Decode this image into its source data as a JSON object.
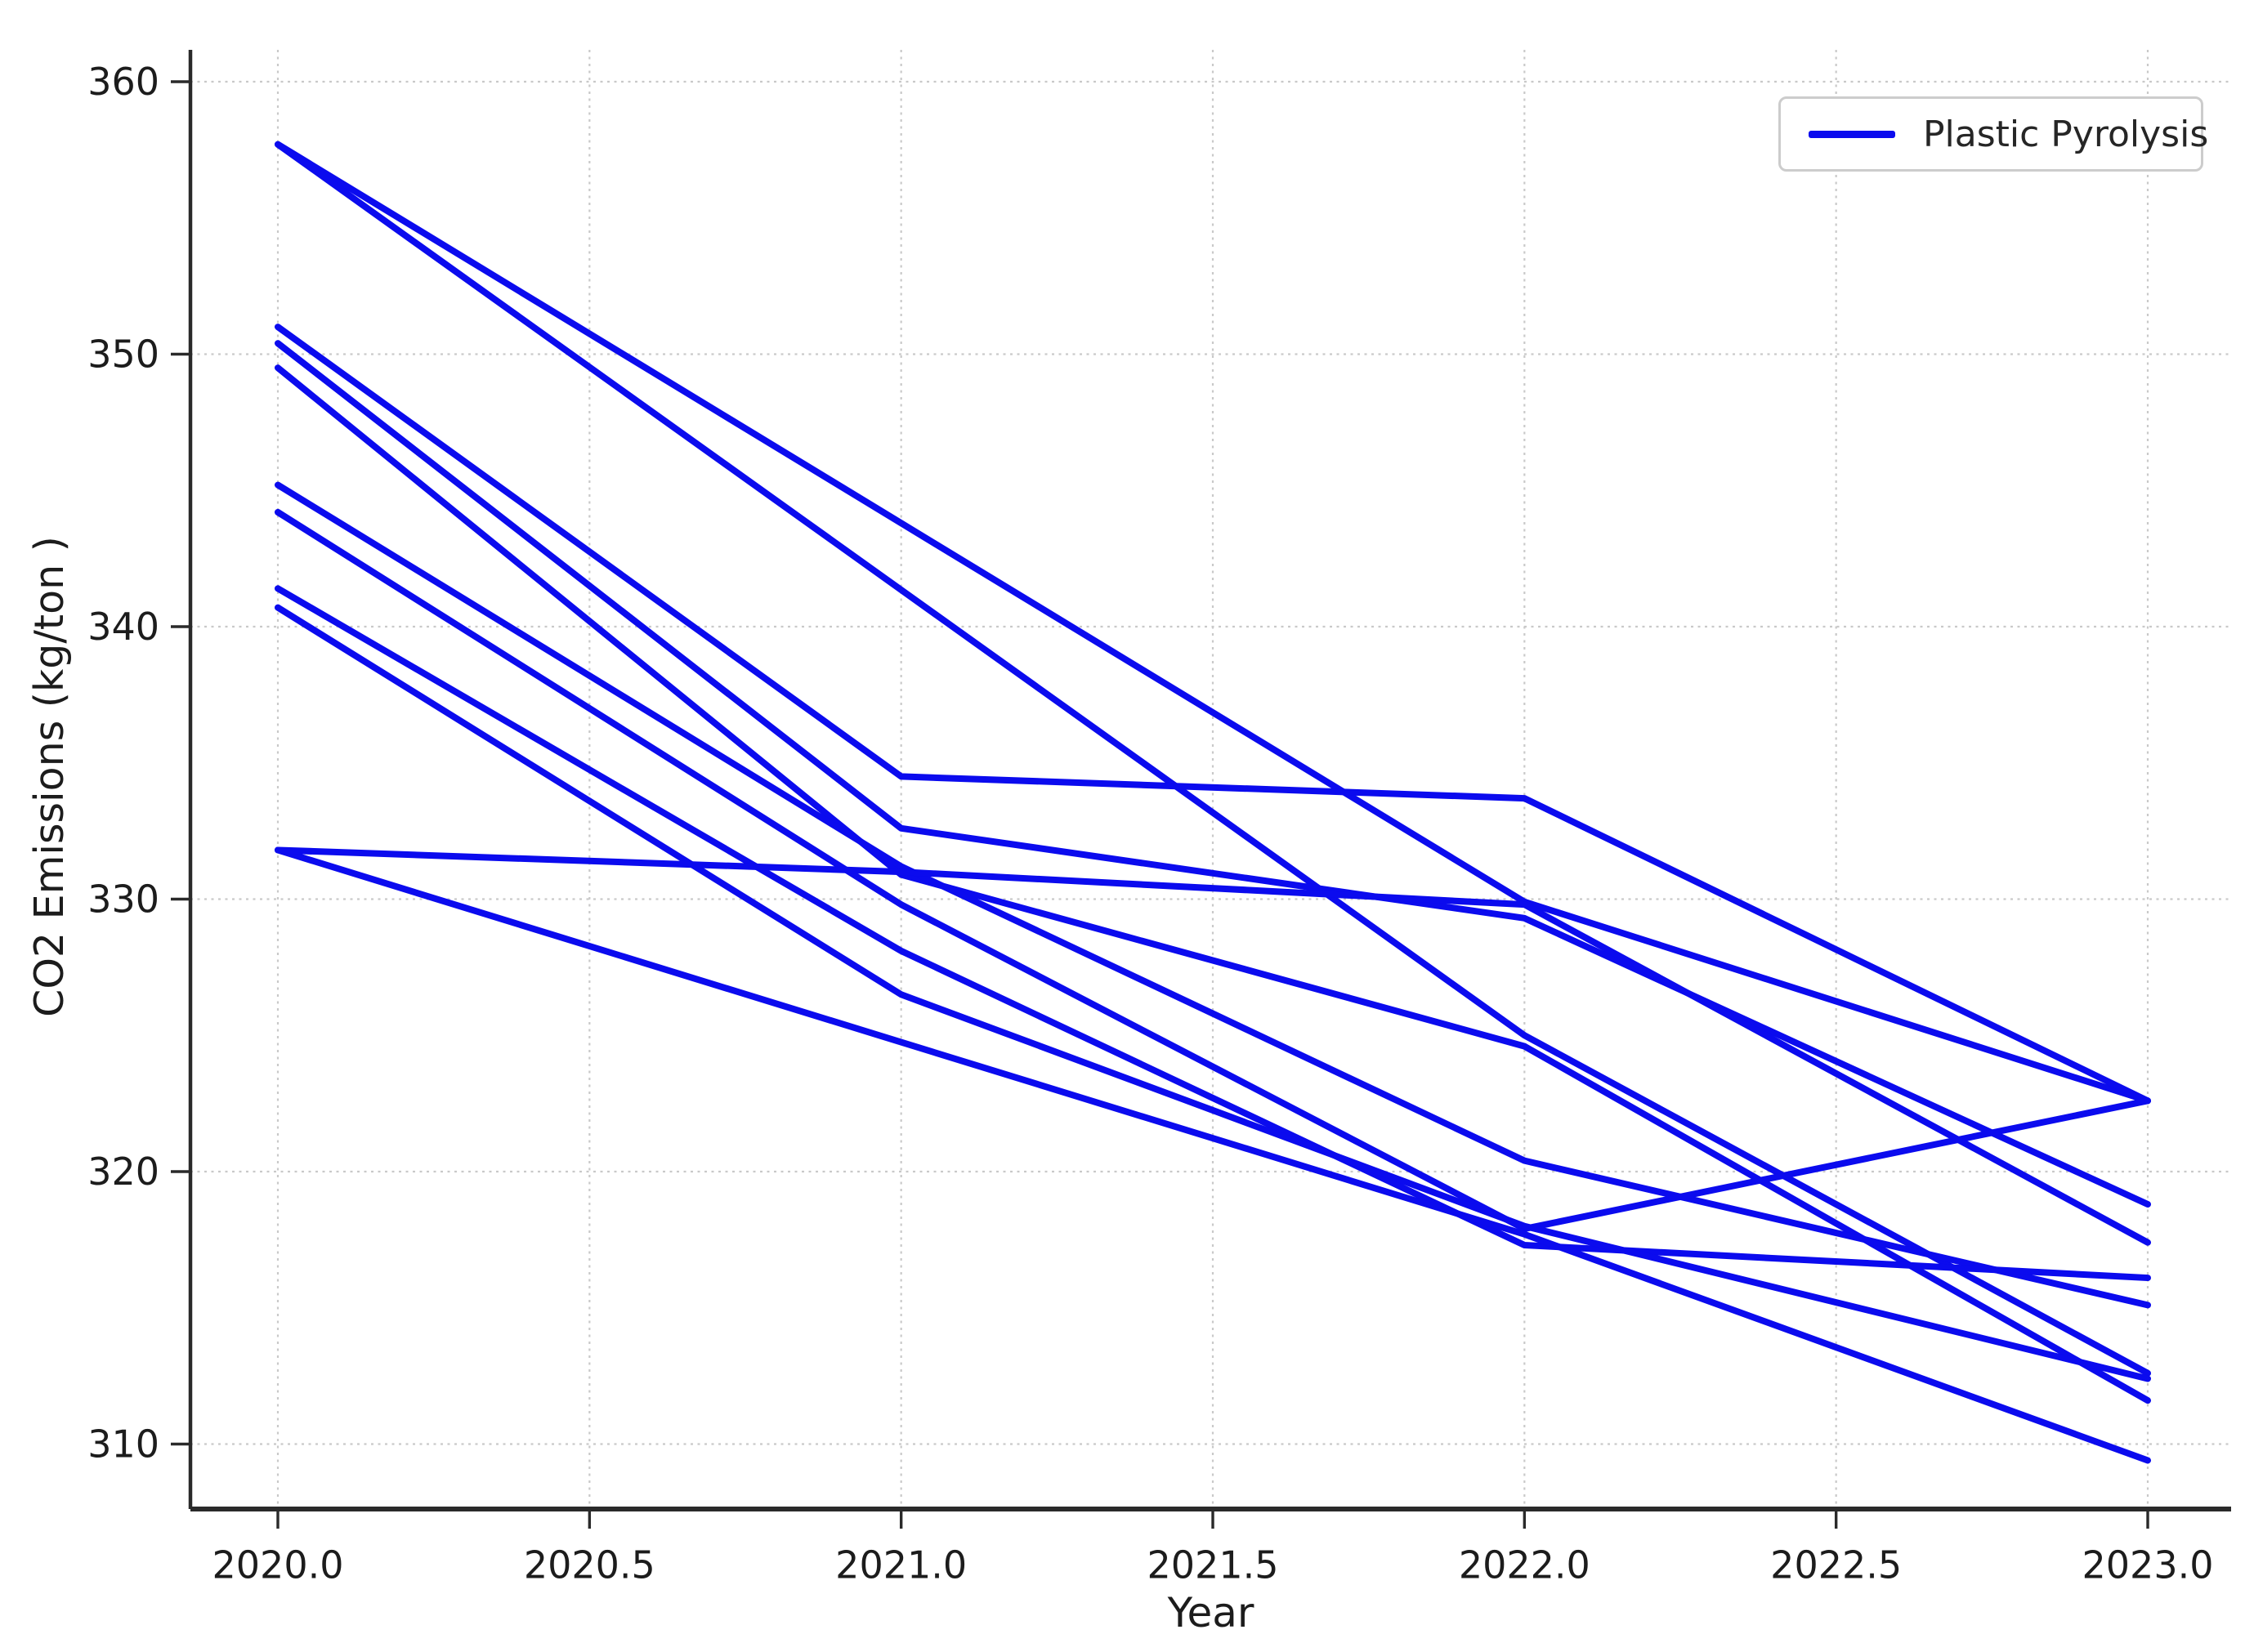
{
  "figure": {
    "kind": "matplotlib-line-chart",
    "background": "#ffffff"
  },
  "axes": {
    "xlabel": "Year",
    "ylabel": "CO2 Emissions (kg/ton )"
  },
  "legend": {
    "label": "Plastic Pyrolysis"
  },
  "colors": {
    "line": "#0b0bee",
    "grid": "#c9c9c9",
    "spine": "#2a2a2a",
    "tick_text": "#1c1c1c",
    "legend_border": "#cccccc"
  },
  "chart_data": {
    "type": "line",
    "title": "",
    "xlabel": "Year",
    "ylabel": "CO2 Emissions (kg/ton )",
    "series_label": "Plastic Pyrolysis",
    "legend_position": "upper right",
    "grid": true,
    "xlim": [
      2019.86,
      2023.13
    ],
    "ylim": [
      307.6,
      361.3
    ],
    "x_ticks": [
      2020.0,
      2020.5,
      2021.0,
      2021.5,
      2022.0,
      2022.5,
      2023.0
    ],
    "x_tick_labels": [
      "2020.0",
      "2020.5",
      "2021.0",
      "2021.5",
      "2022.0",
      "2022.5",
      "2023.0"
    ],
    "y_ticks": [
      310,
      320,
      330,
      340,
      350,
      360
    ],
    "y_tick_labels": [
      "310",
      "320",
      "330",
      "340",
      "350",
      "360"
    ],
    "note": "Single blue series label; drawing consists of many crisscrossing trajectories over years 2020-2023. Vertex values (kg/ton) estimated from gridlines.",
    "lines": [
      {
        "points": [
          [
            2020,
            357.7
          ],
          [
            2022,
            329.9
          ],
          [
            2023,
            322.6
          ]
        ]
      },
      {
        "points": [
          [
            2020,
            357.7
          ],
          [
            2022,
            325.0
          ],
          [
            2023,
            312.6
          ]
        ]
      },
      {
        "points": [
          [
            2020,
            351.0
          ],
          [
            2021,
            334.5
          ],
          [
            2022,
            333.7
          ],
          [
            2023,
            322.6
          ]
        ]
      },
      {
        "points": [
          [
            2020,
            350.4
          ],
          [
            2021,
            332.6
          ],
          [
            2022,
            329.3
          ],
          [
            2023,
            318.8
          ]
        ]
      },
      {
        "points": [
          [
            2020,
            349.5
          ],
          [
            2021,
            330.9
          ],
          [
            2022,
            324.6
          ],
          [
            2023,
            311.6
          ]
        ]
      },
      {
        "points": [
          [
            2020,
            345.2
          ],
          [
            2021,
            331.2
          ],
          [
            2022,
            320.4
          ],
          [
            2023,
            315.1
          ]
        ]
      },
      {
        "points": [
          [
            2020,
            344.2
          ],
          [
            2021,
            329.8
          ],
          [
            2022,
            317.9
          ],
          [
            2023,
            322.6
          ]
        ]
      },
      {
        "points": [
          [
            2020,
            341.4
          ],
          [
            2021,
            328.1
          ],
          [
            2022,
            317.3
          ],
          [
            2023,
            316.1
          ]
        ]
      },
      {
        "points": [
          [
            2020,
            340.7
          ],
          [
            2021,
            326.5
          ],
          [
            2022,
            318.0
          ],
          [
            2023,
            312.4
          ]
        ]
      },
      {
        "points": [
          [
            2020,
            331.8
          ],
          [
            2022,
            317.7
          ],
          [
            2023,
            309.4
          ]
        ]
      },
      {
        "points": [
          [
            2020,
            331.8
          ],
          [
            2021,
            331.0
          ],
          [
            2022,
            329.8
          ],
          [
            2023,
            317.4
          ]
        ]
      }
    ]
  }
}
